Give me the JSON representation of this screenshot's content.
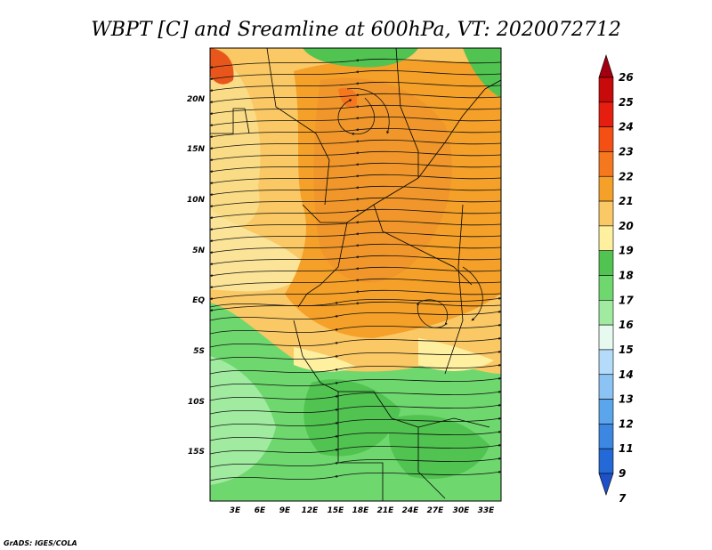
{
  "title": "WBPT [C] and Sreamline at 600hPa, VT: 2020072712",
  "footer": "GrADS: IGES/COLA",
  "map": {
    "lon_ticks": [
      "3E",
      "6E",
      "9E",
      "12E",
      "15E",
      "18E",
      "21E",
      "24E",
      "27E",
      "30E",
      "33E"
    ],
    "lat_ticks": [
      "20N",
      "15N",
      "10N",
      "5N",
      "EQ",
      "5S",
      "10S",
      "15S"
    ],
    "lon_range": [
      0,
      35
    ],
    "lat_range": [
      -19,
      24
    ]
  },
  "colorbar": {
    "labels": [
      "26",
      "25",
      "24",
      "23",
      "22",
      "21",
      "20",
      "19",
      "18",
      "17",
      "16",
      "15",
      "14",
      "13",
      "12",
      "11",
      "9",
      "7"
    ],
    "colors": [
      "#a0000f",
      "#c80a0a",
      "#e61e0f",
      "#f55014",
      "#f5781e",
      "#f5a028",
      "#fac864",
      "#fff0a0",
      "#50c350",
      "#6ed76e",
      "#a0eba0",
      "#e6faf0",
      "#b4dcfa",
      "#8cc3f5",
      "#5aa5eb",
      "#3c87e1",
      "#2369d7",
      "#1e50c8"
    ]
  }
}
